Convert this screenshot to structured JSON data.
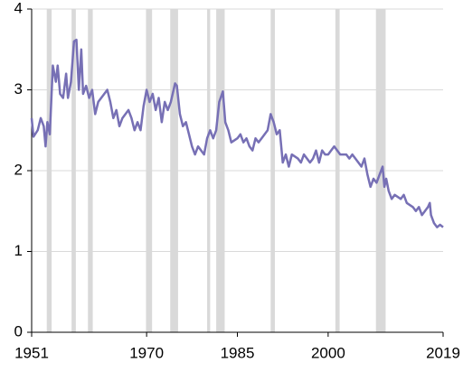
{
  "chart_data": {
    "type": "line",
    "x": [
      1951.0,
      1951.3,
      1952.0,
      1952.5,
      1953.0,
      1953.3,
      1953.6,
      1954.0,
      1954.5,
      1955.0,
      1955.3,
      1955.7,
      1956.2,
      1956.7,
      1957.0,
      1957.5,
      1958.0,
      1958.4,
      1958.8,
      1959.2,
      1959.5,
      1960.0,
      1960.5,
      1961.0,
      1961.5,
      1962.0,
      1963.0,
      1963.5,
      1964.0,
      1964.5,
      1965.0,
      1965.5,
      1966.0,
      1967.0,
      1967.5,
      1968.0,
      1968.5,
      1969.0,
      1969.5,
      1970.0,
      1970.5,
      1971.0,
      1971.5,
      1972.0,
      1972.5,
      1973.0,
      1973.5,
      1974.0,
      1974.7,
      1975.0,
      1975.5,
      1976.0,
      1976.5,
      1977.0,
      1977.5,
      1978.0,
      1978.5,
      1979.0,
      1979.5,
      1980.0,
      1980.5,
      1981.0,
      1981.5,
      1982.0,
      1982.6,
      1983.0,
      1983.5,
      1984.0,
      1985.0,
      1985.5,
      1986.0,
      1986.5,
      1987.0,
      1987.5,
      1988.0,
      1988.5,
      1989.0,
      1989.5,
      1990.0,
      1990.5,
      1991.0,
      1991.5,
      1992.0,
      1992.5,
      1993.0,
      1993.5,
      1994.0,
      1995.0,
      1995.5,
      1996.0,
      1997.0,
      1997.5,
      1998.0,
      1998.5,
      1999.0,
      1999.5,
      2000.0,
      2000.5,
      2001.0,
      2002.0,
      2003.0,
      2003.5,
      2004.0,
      2005.0,
      2005.5,
      2006.0,
      2006.5,
      2007.0,
      2007.5,
      2008.0,
      2008.5,
      2009.0,
      2009.3,
      2009.6,
      2010.0,
      2010.5,
      2011.0,
      2012.0,
      2012.5,
      2013.0,
      2014.0,
      2014.5,
      2015.0,
      2015.5,
      2016.0,
      2016.5,
      2016.8,
      2017.0,
      2017.5,
      2018.0,
      2018.5,
      2019.0
    ],
    "values": [
      2.65,
      2.42,
      2.5,
      2.65,
      2.55,
      2.3,
      2.6,
      2.45,
      3.3,
      3.1,
      3.3,
      2.95,
      2.9,
      3.2,
      2.9,
      3.1,
      3.6,
      3.62,
      3.0,
      3.5,
      2.95,
      3.05,
      2.9,
      3.0,
      2.7,
      2.85,
      2.95,
      3.0,
      2.85,
      2.65,
      2.75,
      2.55,
      2.65,
      2.75,
      2.65,
      2.5,
      2.6,
      2.5,
      2.8,
      3.0,
      2.85,
      2.95,
      2.75,
      2.9,
      2.6,
      2.85,
      2.75,
      2.85,
      3.08,
      3.05,
      2.7,
      2.55,
      2.6,
      2.45,
      2.3,
      2.2,
      2.3,
      2.25,
      2.2,
      2.4,
      2.5,
      2.4,
      2.5,
      2.85,
      2.98,
      2.6,
      2.5,
      2.35,
      2.4,
      2.45,
      2.35,
      2.4,
      2.3,
      2.25,
      2.4,
      2.35,
      2.4,
      2.45,
      2.5,
      2.7,
      2.6,
      2.45,
      2.5,
      2.1,
      2.2,
      2.05,
      2.2,
      2.15,
      2.1,
      2.2,
      2.1,
      2.15,
      2.25,
      2.1,
      2.25,
      2.2,
      2.2,
      2.25,
      2.3,
      2.2,
      2.2,
      2.15,
      2.2,
      2.1,
      2.05,
      2.15,
      1.95,
      1.8,
      1.9,
      1.85,
      1.95,
      2.05,
      1.8,
      1.9,
      1.75,
      1.65,
      1.7,
      1.65,
      1.7,
      1.6,
      1.55,
      1.5,
      1.55,
      1.45,
      1.5,
      1.55,
      1.6,
      1.45,
      1.35,
      1.3,
      1.33,
      1.3
    ],
    "color": "#7770b5",
    "shaded_regions": [
      [
        1953.5,
        1954.3
      ],
      [
        1957.6,
        1958.3
      ],
      [
        1960.3,
        1961.1
      ],
      [
        1969.9,
        1970.9
      ],
      [
        1973.9,
        1975.2
      ],
      [
        1980.0,
        1980.5
      ],
      [
        1981.5,
        1982.9
      ],
      [
        1990.5,
        1991.2
      ],
      [
        2001.2,
        2001.9
      ],
      [
        2007.9,
        2009.5
      ]
    ],
    "shade_color": "#d9d9d9",
    "xlim": [
      1951,
      2019
    ],
    "xticks": [
      1951,
      1970,
      1985,
      2000,
      2019
    ],
    "ylim": [
      0,
      4
    ],
    "yticks": [
      0,
      1,
      2,
      3,
      4
    ],
    "grid": true
  }
}
